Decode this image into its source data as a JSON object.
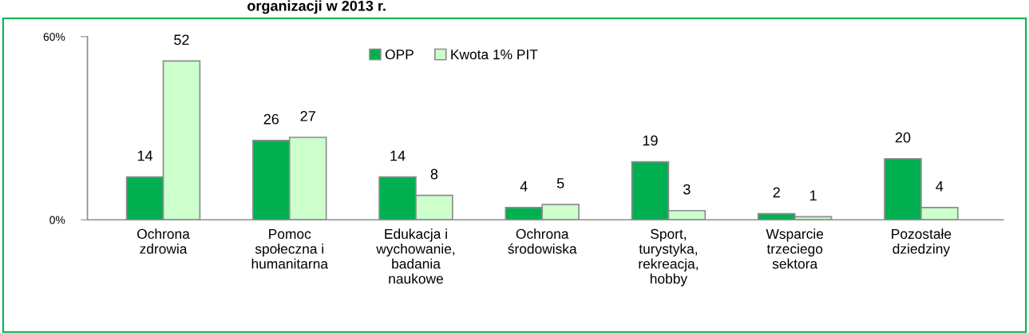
{
  "chart_data": {
    "type": "bar",
    "title": "organizacji w 2013 r.",
    "categories": [
      "Ochrona\nzdrowia",
      "Pomoc\nspołeczna i\nhumanitarna",
      "Edukacja i\nwychowanie,\nbadania\nnaukowe",
      "Ochrona\nśrodowiska",
      "Sport,\nturystyka,\nrekreacja,\nhobby",
      "Wsparcie\ntrzeciego\nsektora",
      "Pozostałe\ndziedziny"
    ],
    "series": [
      {
        "name": "OPP",
        "color": "#00b050",
        "values": [
          14,
          26,
          14,
          4,
          19,
          2,
          20
        ]
      },
      {
        "name": "Kwota 1% PIT",
        "color": "#ccffcc",
        "values": [
          52,
          27,
          8,
          5,
          3,
          1,
          4
        ]
      }
    ],
    "ylim": [
      0,
      60
    ],
    "yticks": [
      {
        "value": 0,
        "label": "0%"
      },
      {
        "value": 60,
        "label": "60%"
      }
    ],
    "data_labels": true,
    "legend": "top",
    "grid": false
  }
}
